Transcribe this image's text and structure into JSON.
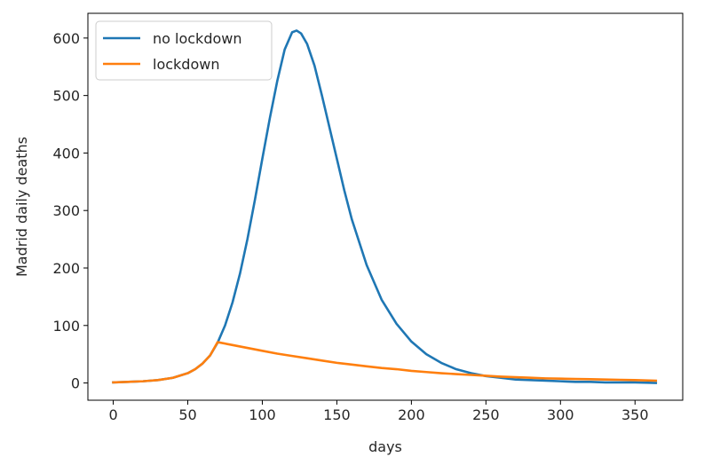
{
  "chart_data": {
    "type": "line",
    "title": "",
    "xlabel": "days",
    "ylabel": "Madrid daily deaths",
    "xlim": [
      -17,
      382
    ],
    "ylim": [
      -30,
      643
    ],
    "x_ticks": [
      0,
      50,
      100,
      150,
      200,
      250,
      300,
      350
    ],
    "y_ticks": [
      0,
      100,
      200,
      300,
      400,
      500,
      600
    ],
    "grid": false,
    "legend_position": "top-left",
    "series": [
      {
        "name": "no lockdown",
        "color": "#1f77b4",
        "x": [
          0,
          10,
          20,
          30,
          40,
          50,
          55,
          60,
          65,
          70,
          75,
          80,
          85,
          90,
          95,
          100,
          105,
          110,
          115,
          120,
          123,
          126,
          130,
          135,
          140,
          145,
          150,
          155,
          160,
          170,
          180,
          190,
          200,
          210,
          220,
          230,
          240,
          250,
          260,
          270,
          280,
          290,
          300,
          310,
          320,
          330,
          340,
          350,
          364
        ],
        "y": [
          1,
          2,
          3,
          5,
          9,
          17,
          24,
          34,
          48,
          70,
          100,
          140,
          190,
          250,
          318,
          390,
          460,
          525,
          580,
          610,
          613,
          608,
          590,
          552,
          500,
          445,
          390,
          335,
          285,
          205,
          145,
          103,
          72,
          50,
          35,
          24,
          17,
          12,
          9,
          6,
          5,
          4,
          3,
          2,
          2,
          1,
          1,
          1,
          0
        ]
      },
      {
        "name": "lockdown",
        "color": "#ff7f0e",
        "x": [
          0,
          10,
          20,
          30,
          40,
          50,
          55,
          60,
          65,
          70,
          80,
          90,
          100,
          110,
          120,
          130,
          140,
          150,
          160,
          170,
          180,
          190,
          200,
          210,
          220,
          230,
          240,
          250,
          260,
          270,
          280,
          290,
          300,
          310,
          320,
          330,
          340,
          350,
          364
        ],
        "y": [
          1,
          2,
          3,
          5,
          9,
          17,
          24,
          34,
          48,
          71,
          66,
          61,
          56,
          51,
          47,
          43,
          39,
          35,
          32,
          29,
          26,
          24,
          21,
          19,
          17,
          15.5,
          14,
          12.5,
          11,
          10,
          9,
          8,
          7.5,
          7,
          6.5,
          6,
          5.5,
          5,
          4
        ]
      }
    ]
  }
}
